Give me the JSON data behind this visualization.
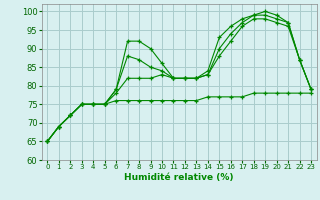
{
  "background_color": "#d8f0f0",
  "grid_color": "#aacccc",
  "line_color": "#008800",
  "marker_color": "#008800",
  "xlabel": "Humidité relative (%)",
  "xlim": [
    -0.5,
    23.5
  ],
  "ylim": [
    60,
    102
  ],
  "yticks": [
    60,
    65,
    70,
    75,
    80,
    85,
    90,
    95,
    100
  ],
  "xticks": [
    0,
    1,
    2,
    3,
    4,
    5,
    6,
    7,
    8,
    9,
    10,
    11,
    12,
    13,
    14,
    15,
    16,
    17,
    18,
    19,
    20,
    21,
    22,
    23
  ],
  "series": [
    [
      65,
      69,
      72,
      75,
      75,
      75,
      79,
      92,
      92,
      90,
      86,
      82,
      82,
      82,
      84,
      93,
      96,
      98,
      99,
      100,
      99,
      97,
      87,
      79
    ],
    [
      65,
      69,
      72,
      75,
      75,
      75,
      79,
      88,
      87,
      85,
      84,
      82,
      82,
      82,
      83,
      90,
      94,
      97,
      99,
      99,
      98,
      97,
      87,
      79
    ],
    [
      65,
      69,
      72,
      75,
      75,
      75,
      78,
      82,
      82,
      82,
      83,
      82,
      82,
      82,
      83,
      88,
      92,
      96,
      98,
      98,
      97,
      96,
      87,
      79
    ],
    [
      65,
      69,
      72,
      75,
      75,
      75,
      76,
      76,
      76,
      76,
      76,
      76,
      76,
      76,
      77,
      77,
      77,
      77,
      78,
      78,
      78,
      78,
      78,
      78
    ]
  ]
}
